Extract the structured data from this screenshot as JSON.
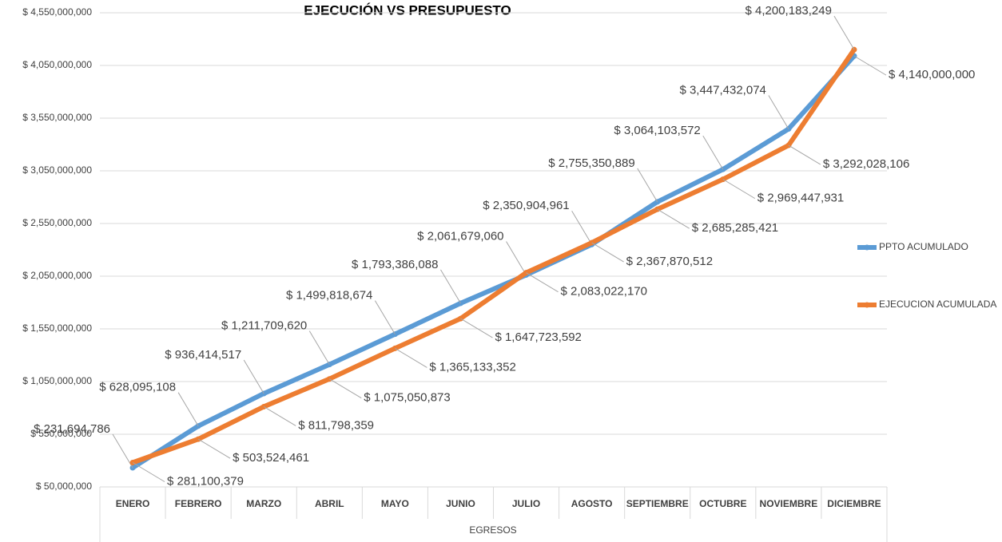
{
  "chart_data": {
    "type": "line",
    "title": "EJECUCIÓN VS PRESUPUESTO",
    "x_label": "EGRESOS",
    "categories": [
      "ENERO",
      "FEBRERO",
      "MARZO",
      "ABRIL",
      "MAYO",
      "JUNIO",
      "JULIO",
      "AGOSTO",
      "SEPTIEMBRE",
      "OCTUBRE",
      "NOVIEMBRE",
      "DICIEMBRE"
    ],
    "series": [
      {
        "name": "PPTO ACUMULADO",
        "color": "#5b9bd5",
        "values": [
          231694786,
          628095108,
          936414517,
          1211709620,
          1499818674,
          1793386088,
          2061679060,
          2350904961,
          2755350889,
          3064103572,
          3447432074,
          4140000000
        ],
        "value_labels": [
          "$ 231,694,786",
          "$ 628,095,108",
          "$ 936,414,517",
          "$ 1,211,709,620",
          "$ 1,499,818,674",
          "$ 1,793,386,088",
          "$ 2,061,679,060",
          "$ 2,350,904,961",
          "$ 2,755,350,889",
          "$ 3,064,103,572",
          "$ 3,447,432,074",
          "$ 4,140,000,000"
        ]
      },
      {
        "name": "EJECUCION ACUMULADA",
        "color": "#ed7d31",
        "values": [
          281100379,
          503524461,
          811798359,
          1075050873,
          1365133352,
          1647723592,
          2083022170,
          2367870512,
          2685285421,
          2969447931,
          3292028106,
          4200183249
        ],
        "value_labels": [
          "$ 281,100,379",
          "$ 503,524,461",
          "$ 811,798,359",
          "$ 1,075,050,873",
          "$ 1,365,133,352",
          "$ 1,647,723,592",
          "$ 2,083,022,170",
          "$ 2,367,870,512",
          "$ 2,685,285,421",
          "$ 2,969,447,931",
          "$ 3,292,028,106",
          "$ 4,200,183,249"
        ]
      }
    ],
    "ylim": [
      50000000,
      4550000000
    ],
    "yticks": [
      {
        "value": 50000000,
        "label": "$ 50,000,000"
      },
      {
        "value": 550000000,
        "label": "$ 550,000,000"
      },
      {
        "value": 1050000000,
        "label": "$ 1,050,000,000"
      },
      {
        "value": 1550000000,
        "label": "$ 1,550,000,000"
      },
      {
        "value": 2050000000,
        "label": "$ 2,050,000,000"
      },
      {
        "value": 2550000000,
        "label": "$ 2,550,000,000"
      },
      {
        "value": 3050000000,
        "label": "$ 3,050,000,000"
      },
      {
        "value": 3550000000,
        "label": "$ 3,550,000,000"
      },
      {
        "value": 4050000000,
        "label": "$ 4,050,000,000"
      },
      {
        "value": 4550000000,
        "label": "$ 4,550,000,000"
      }
    ],
    "grid": true,
    "legend": "right"
  }
}
